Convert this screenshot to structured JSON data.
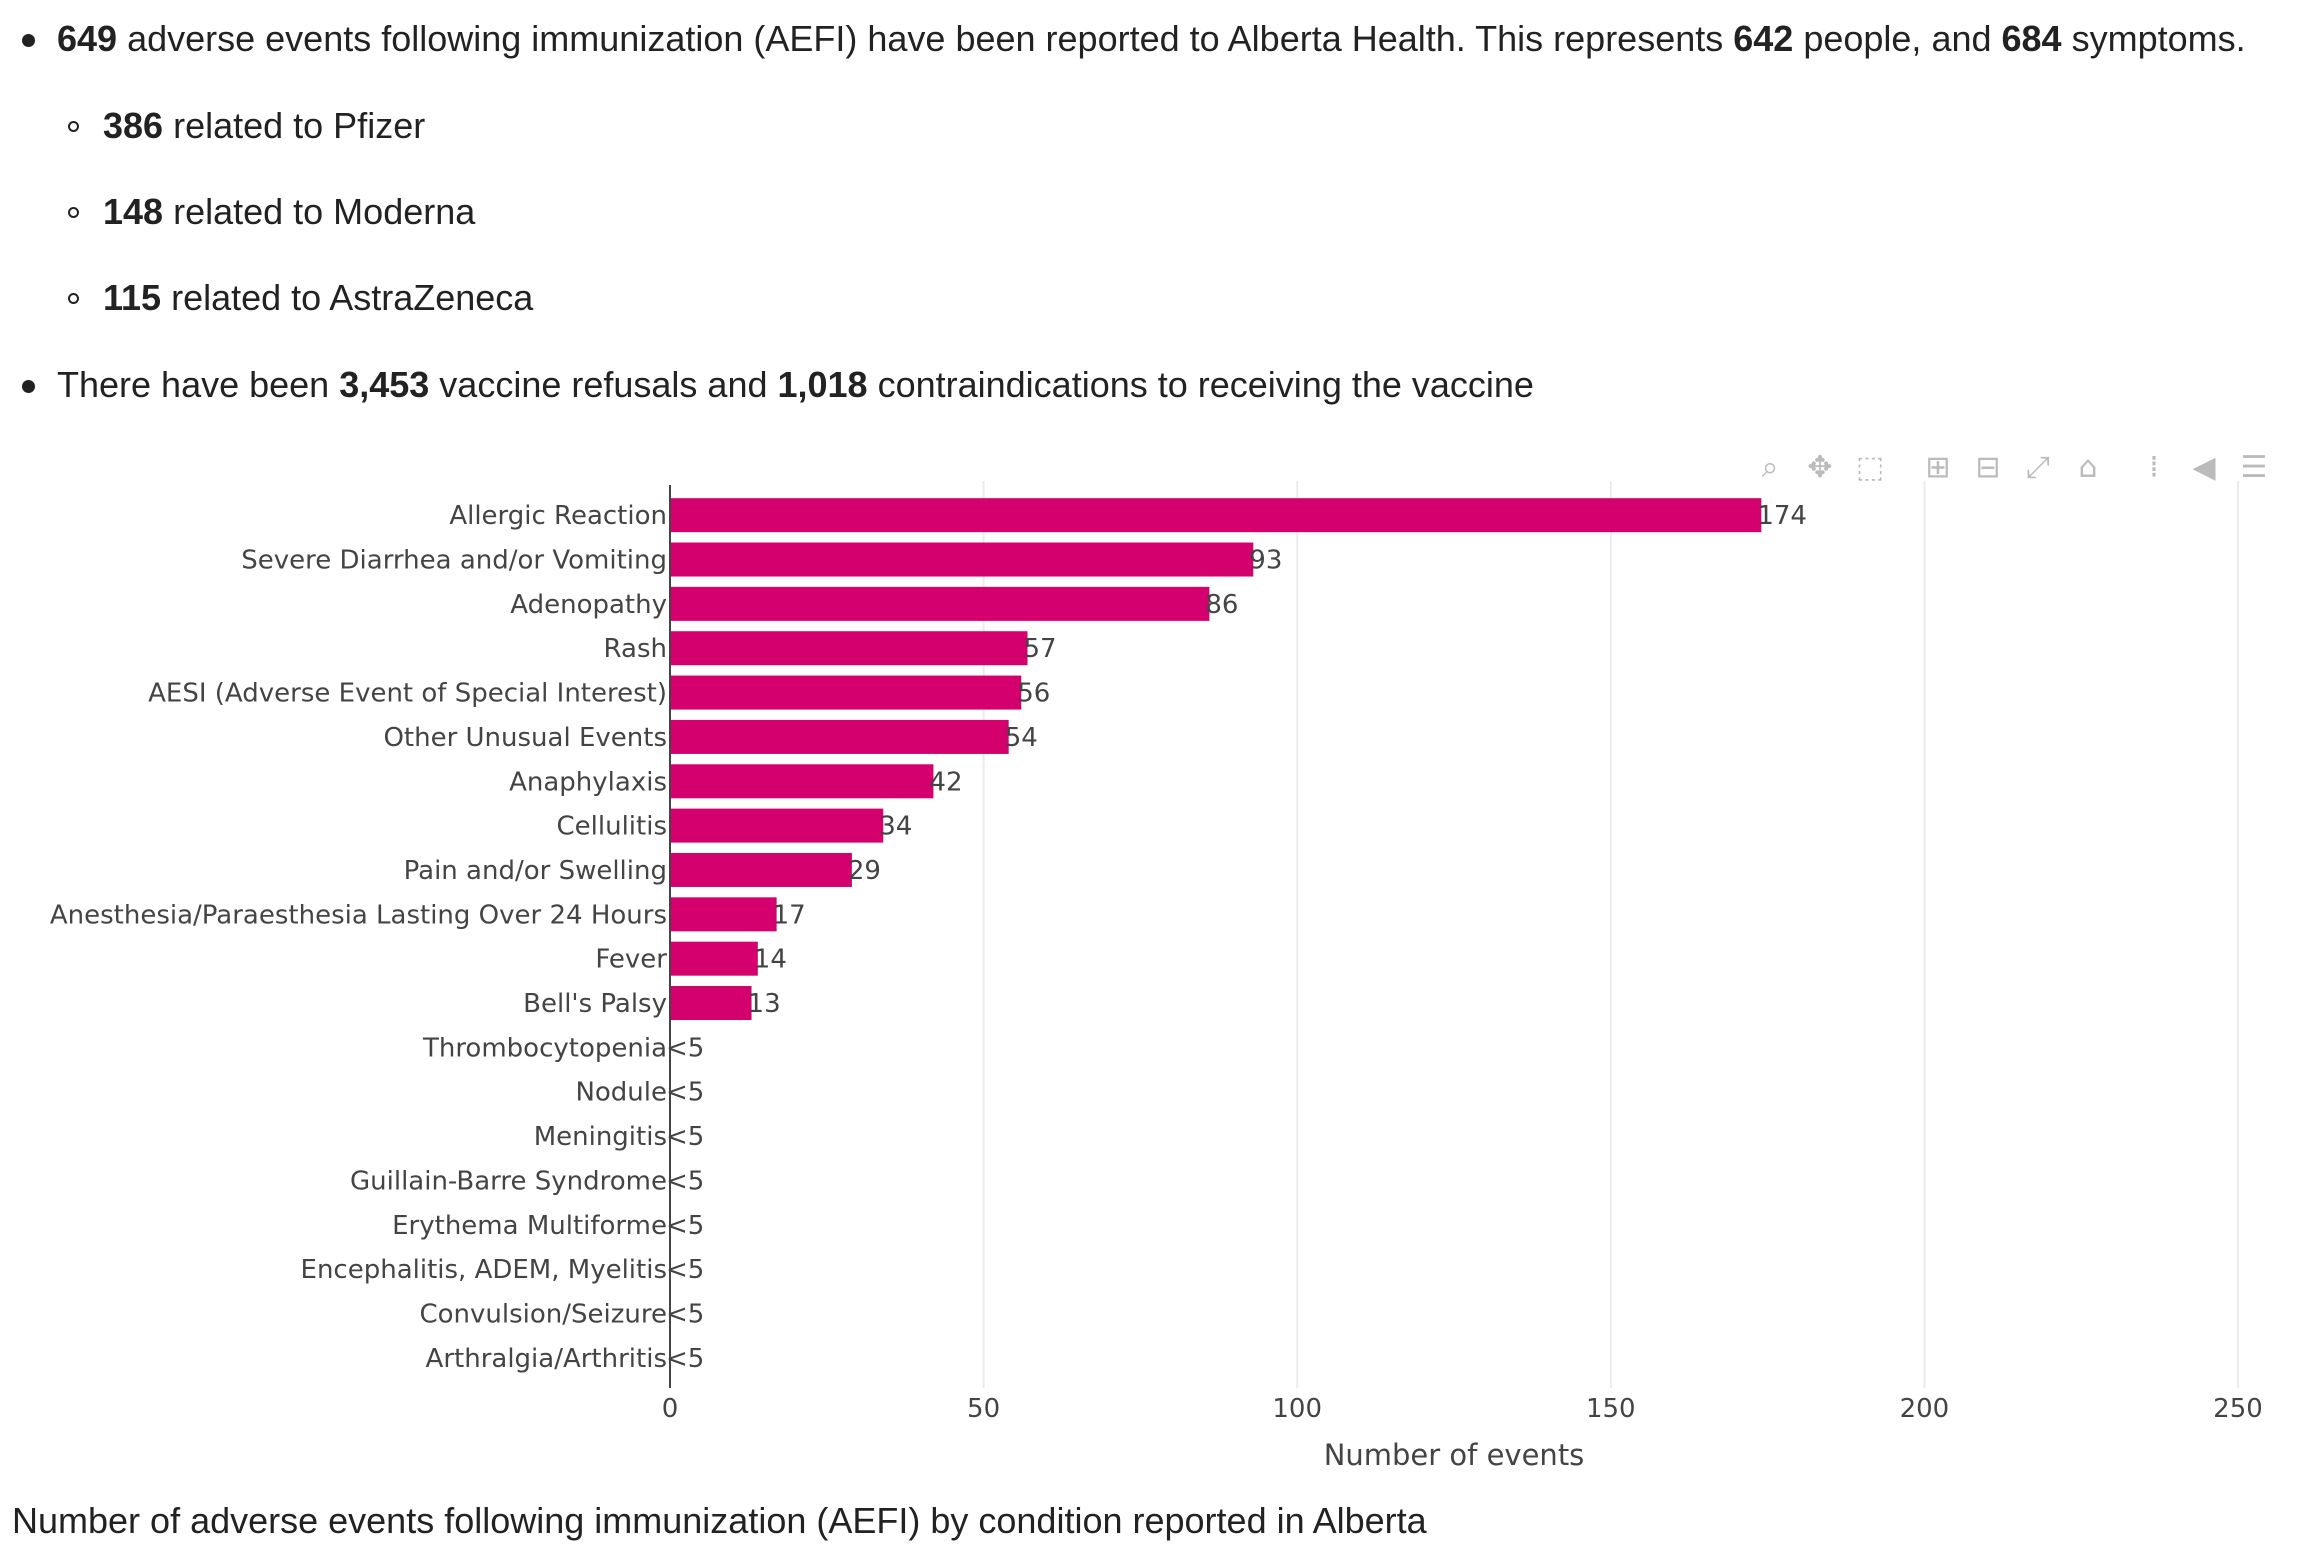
{
  "summary": {
    "aefi": {
      "count": "649",
      "text_a": " adverse events following immunization (AEFI) have been reported to Alberta Health. This represents ",
      "people": "642",
      "text_b": " people, and ",
      "symptoms": "684",
      "text_c": " symptoms."
    },
    "vaccines": [
      {
        "count": "386",
        "text": " related to Pfizer"
      },
      {
        "count": "148",
        "text": " related to Moderna"
      },
      {
        "count": "115",
        "text": " related to AstraZeneca"
      }
    ],
    "refusals": {
      "text_a": "There have been ",
      "refusals": "3,453",
      "text_b": " vaccine refusals and ",
      "contra": "1,018",
      "text_c": " contraindications to receiving the vaccine"
    }
  },
  "modebar": {
    "icons": [
      "zoom-icon",
      "pan-icon",
      "box-select-icon",
      "zoom-in-icon",
      "zoom-out-icon",
      "autoscale-icon",
      "reset-axes-icon",
      "spike-lines-icon",
      "hover-closest-icon",
      "hover-compare-icon"
    ]
  },
  "chart_data": {
    "type": "bar",
    "orientation": "horizontal",
    "categories": [
      "Allergic Reaction",
      "Severe Diarrhea and/or Vomiting",
      "Adenopathy",
      "Rash",
      "AESI (Adverse Event of Special Interest)",
      "Other Unusual Events",
      "Anaphylaxis",
      "Cellulitis",
      "Pain and/or Swelling",
      "Anesthesia/Paraesthesia Lasting Over 24 Hours",
      "Fever",
      "Bell's Palsy",
      "Thrombocytopenia",
      "Nodule",
      "Meningitis",
      "Guillain-Barre Syndrome",
      "Erythema Multiforme",
      "Encephalitis, ADEM, Myelitis",
      "Convulsion/Seizure",
      "Arthralgia/Arthritis"
    ],
    "values": [
      174,
      93,
      86,
      57,
      56,
      54,
      42,
      34,
      29,
      17,
      14,
      13,
      0,
      0,
      0,
      0,
      0,
      0,
      0,
      0
    ],
    "labels": [
      "174",
      "93",
      "86",
      "57",
      "56",
      "54",
      "42",
      "34",
      "29",
      "17",
      "14",
      "13",
      "<5",
      "<5",
      "<5",
      "<5",
      "<5",
      "<5",
      "<5",
      "<5"
    ],
    "xlabel": "Number of events",
    "xlim": [
      0,
      250
    ],
    "xticks": [
      0,
      50,
      100,
      150,
      200,
      250
    ],
    "color": "#d4006e",
    "grid": true,
    "caption": "Number of adverse events following immunization (AEFI) by condition reported in Alberta"
  }
}
